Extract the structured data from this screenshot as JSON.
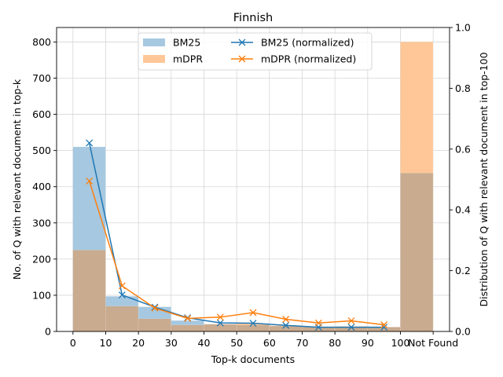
{
  "chart_data": {
    "type": "bar",
    "title": "Finnish",
    "xlabel": "Top-k documents",
    "ylabel": "No. of Q with relevant document in top-k",
    "y2label": "Distribution of Q with relevant document in top-100",
    "x_ticks": [
      "0",
      "10",
      "20",
      "30",
      "40",
      "50",
      "60",
      "70",
      "80",
      "90",
      "100",
      "Not Found"
    ],
    "bins": [
      "0-10",
      "10-20",
      "20-30",
      "30-40",
      "40-50",
      "50-60",
      "60-70",
      "70-80",
      "80-90",
      "90-100",
      "Not Found"
    ],
    "ylim": [
      0,
      840
    ],
    "y_ticks": [
      0,
      100,
      200,
      300,
      400,
      500,
      600,
      700,
      800
    ],
    "y2lim": [
      0,
      1.0
    ],
    "y2_ticks": [
      0.0,
      0.2,
      0.4,
      0.6,
      0.8,
      1.0
    ],
    "y2_tick_labels": [
      "0.0",
      "0.2",
      "0.4",
      "0.6",
      "0.8",
      "1.0"
    ],
    "grid": true,
    "legend_placement": "top-center",
    "series": [
      {
        "name": "BM25",
        "kind": "bar",
        "color": "#a6c8e0",
        "values": [
          510,
          97,
          68,
          30,
          20,
          18,
          15,
          12,
          12,
          12,
          438
        ]
      },
      {
        "name": "mDPR",
        "kind": "bar",
        "color": "#ffc797",
        "values": [
          225,
          70,
          35,
          18,
          20,
          22,
          16,
          13,
          14,
          12,
          800
        ]
      },
      {
        "name": "BM25 (normalized)",
        "kind": "line",
        "color": "#1f77b4",
        "marker": "x",
        "x": [
          5,
          15,
          25,
          35,
          45,
          55,
          65,
          75,
          85,
          95
        ],
        "values": [
          0.62,
          0.12,
          0.08,
          0.045,
          0.028,
          0.027,
          0.02,
          0.014,
          0.014,
          0.014
        ]
      },
      {
        "name": "mDPR (normalized)",
        "kind": "line",
        "color": "#ff7f0e",
        "marker": "x",
        "x": [
          5,
          15,
          25,
          35,
          45,
          55,
          65,
          75,
          85,
          95
        ],
        "values": [
          0.495,
          0.15,
          0.077,
          0.043,
          0.047,
          0.062,
          0.04,
          0.028,
          0.035,
          0.022
        ]
      }
    ],
    "overlap_color": "#c9ab8f"
  }
}
